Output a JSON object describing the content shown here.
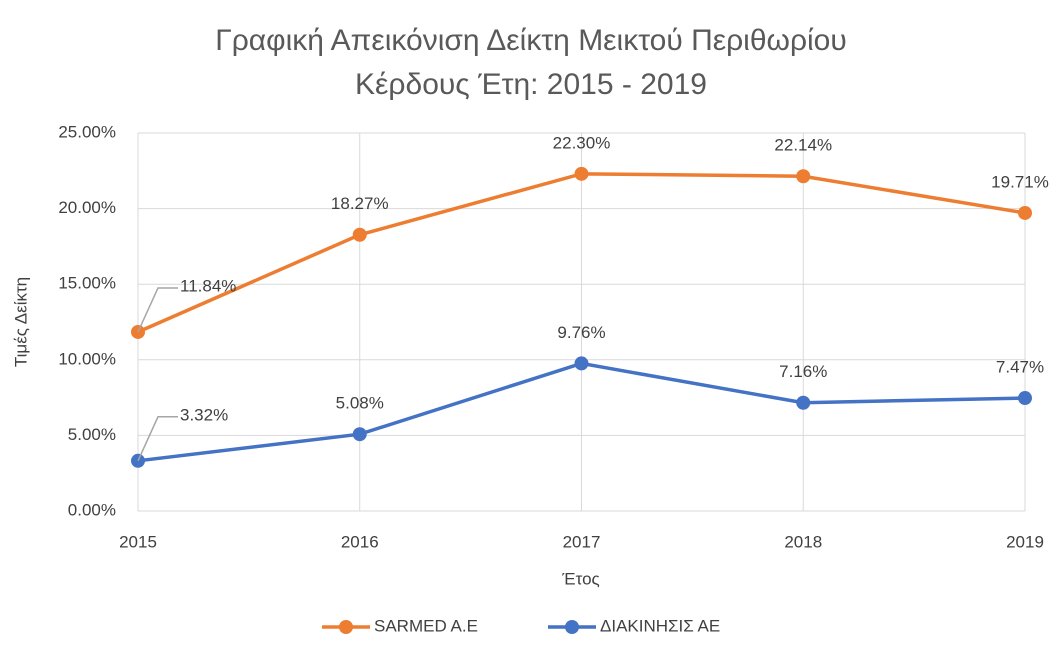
{
  "chart_data": {
    "type": "line",
    "title": [
      "Γραφική Απεικόνιση Δείκτη Μεικτού Περιθωρίου",
      "Κέρδους  Έτη: 2015 - 2019"
    ],
    "x_label": "Έτος",
    "y_label": "Τιμές  Δείκτη",
    "x": [
      2015,
      2016,
      2017,
      2018,
      2019
    ],
    "xlim": [
      2015,
      2019
    ],
    "xticks": [
      2015,
      2016,
      2017,
      2018,
      2019
    ],
    "ylim": [
      0,
      25
    ],
    "yticks": [
      {
        "value": 0,
        "label": "0.00%"
      },
      {
        "value": 5,
        "label": "5.00%"
      },
      {
        "value": 10,
        "label": "10.00%"
      },
      {
        "value": 15,
        "label": "15.00%"
      },
      {
        "value": 20,
        "label": "20.00%"
      },
      {
        "value": 25,
        "label": "25.00%"
      }
    ],
    "grid": true,
    "legend": "bottom",
    "series": [
      {
        "name": "SARMED A.E",
        "color": "#ed7d31",
        "values": [
          11.84,
          18.27,
          22.3,
          22.14,
          19.71
        ],
        "value_labels": [
          "11.84%",
          "18.27%",
          "22.30%",
          "22.14%",
          "19.71%"
        ]
      },
      {
        "name": "ΔΙΑΚΙΝΗΣΙΣ ΑΕ",
        "color": "#4472c4",
        "values": [
          3.32,
          5.08,
          9.76,
          7.16,
          7.47
        ],
        "value_labels": [
          "3.32%",
          "5.08%",
          "9.76%",
          "7.16%",
          "7.47%"
        ]
      }
    ]
  }
}
